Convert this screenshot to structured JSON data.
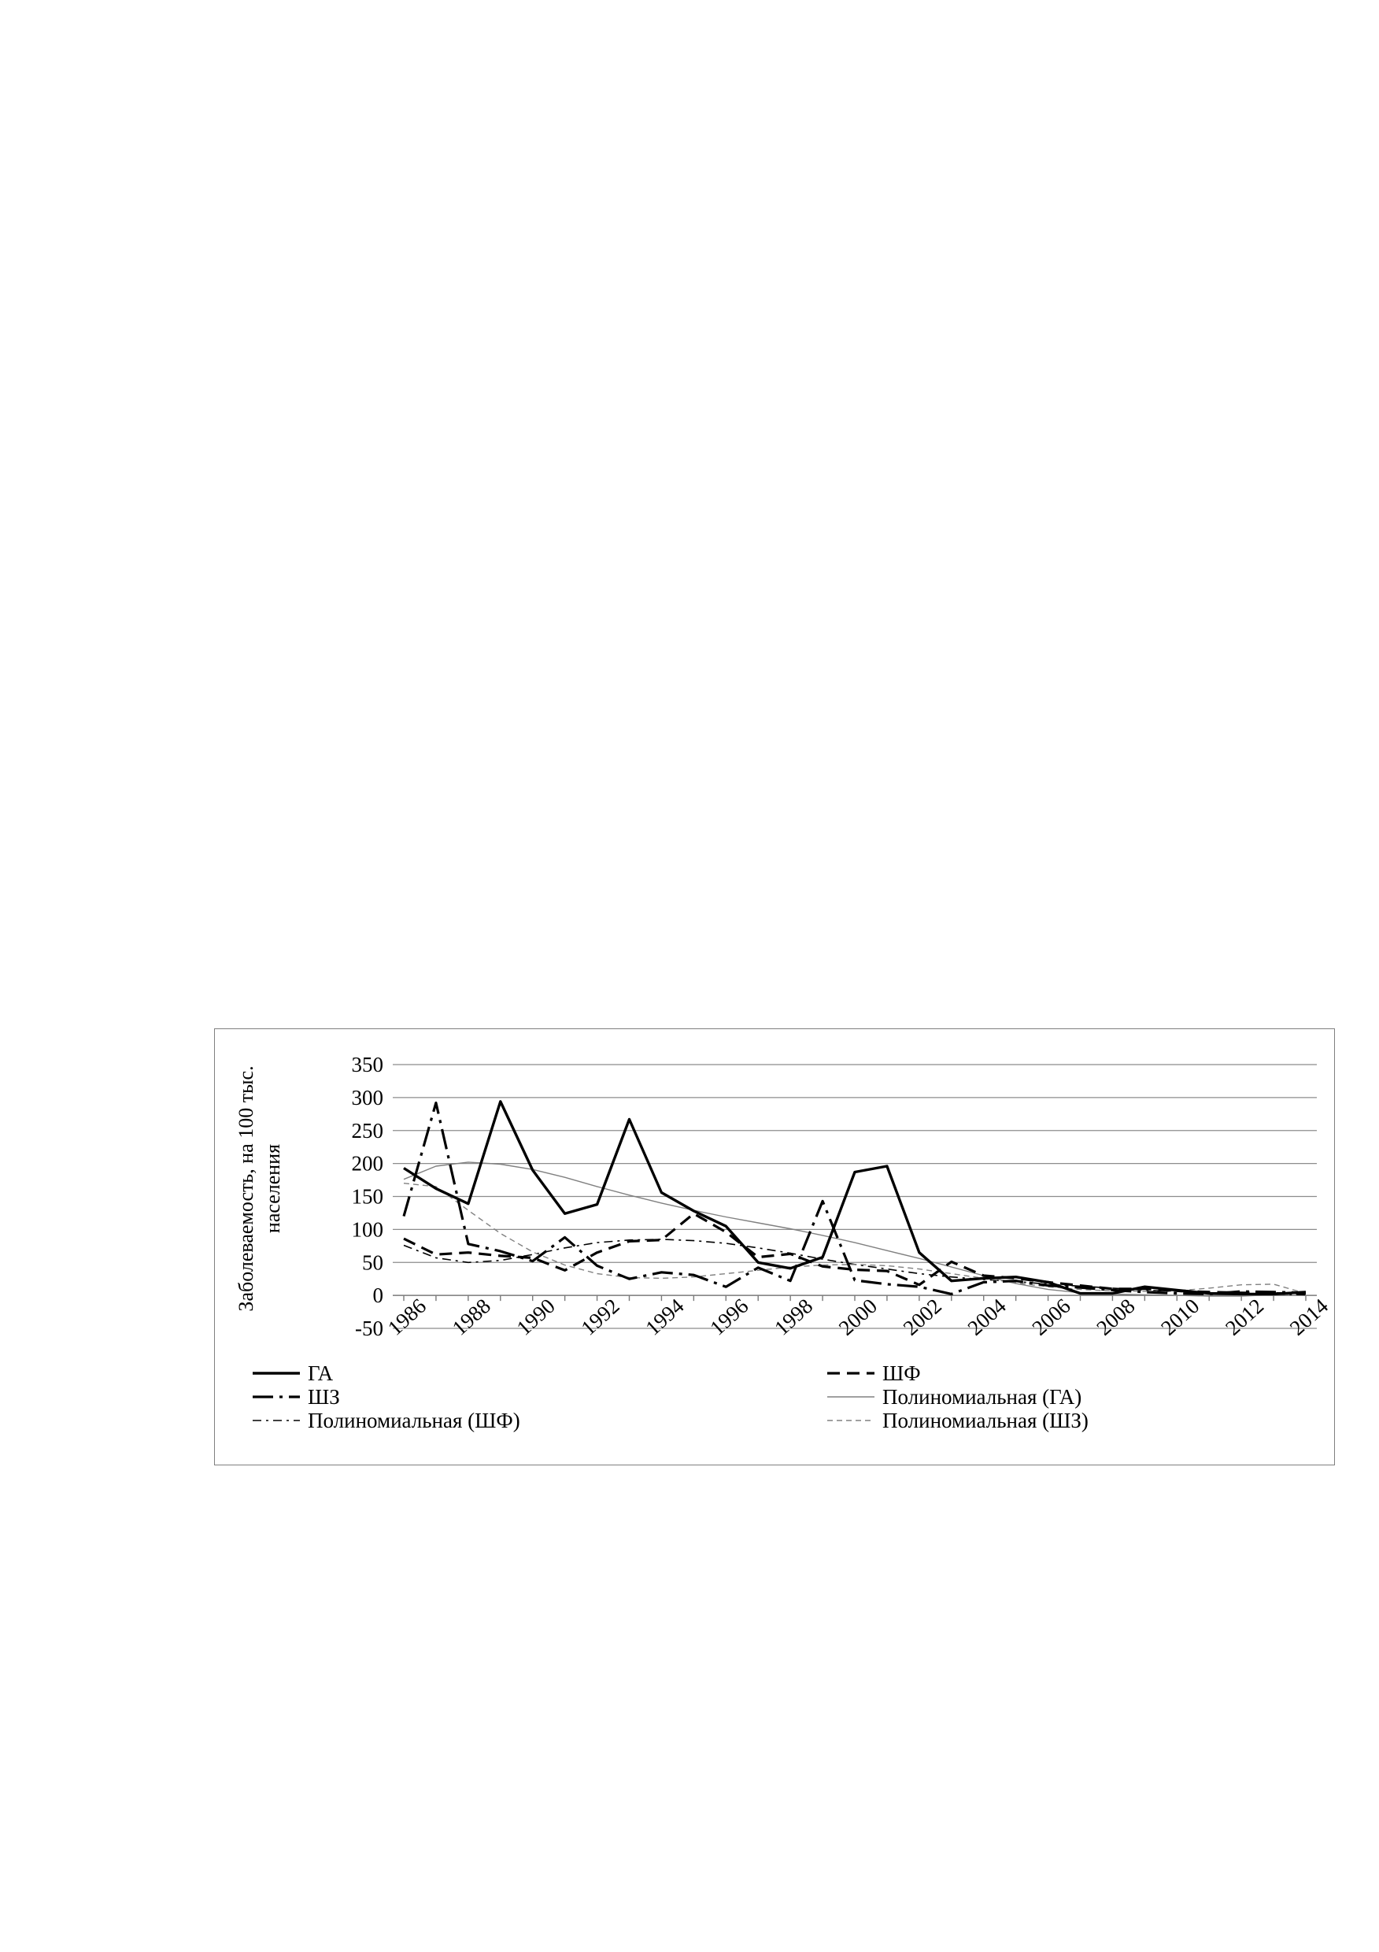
{
  "chart_data": {
    "type": "line",
    "title": "",
    "xlabel": "",
    "ylabel": "Заболеваемость, на 100 тыс. населения",
    "ylabel_lines": [
      "Заболеваемость, на 100 тыс.",
      "населения"
    ],
    "ylim": [
      -50,
      350
    ],
    "yticks": [
      -50,
      0,
      50,
      100,
      150,
      200,
      250,
      300,
      350
    ],
    "xlim": [
      1986,
      2014
    ],
    "xticks": [
      1986,
      1988,
      1990,
      1992,
      1994,
      1996,
      1998,
      2000,
      2002,
      2004,
      2006,
      2008,
      2010,
      2012,
      2014
    ],
    "grid": "horizontal",
    "legend_position": "bottom",
    "x": [
      1986,
      1987,
      1988,
      1989,
      1990,
      1991,
      1992,
      1993,
      1994,
      1995,
      1996,
      1997,
      1998,
      1999,
      2000,
      2001,
      2002,
      2003,
      2004,
      2005,
      2006,
      2007,
      2008,
      2009,
      2010,
      2011,
      2012,
      2013,
      2014
    ],
    "series": [
      {
        "name": "ГА",
        "style": "solid-thick",
        "color": "#000000",
        "values": [
          193,
          162,
          139,
          294,
          190,
          124,
          138,
          267,
          156,
          128,
          105,
          50,
          41,
          58,
          187,
          196,
          65,
          22,
          26,
          28,
          20,
          3,
          3,
          13,
          8,
          3,
          2,
          2,
          5
        ]
      },
      {
        "name": "ШФ",
        "style": "dashed-thick",
        "color": "#000000",
        "values": [
          86,
          62,
          65,
          60,
          57,
          38,
          65,
          82,
          84,
          124,
          96,
          58,
          63,
          44,
          39,
          37,
          16,
          51,
          30,
          26,
          20,
          15,
          10,
          10,
          7,
          5,
          4,
          3,
          3
        ]
      },
      {
        "name": "ШЗ",
        "style": "longdash-dot-thick",
        "color": "#000000",
        "values": [
          120,
          292,
          78,
          67,
          52,
          88,
          45,
          25,
          35,
          31,
          13,
          42,
          22,
          143,
          23,
          17,
          13,
          2,
          20,
          22,
          15,
          12,
          8,
          5,
          3,
          2,
          6,
          5,
          4
        ]
      },
      {
        "name": "Полиномиальная (ГА)",
        "style": "solid-thin",
        "color": "#808080",
        "values": [
          176,
          196,
          202,
          199,
          191,
          179,
          165,
          152,
          140,
          129,
          119,
          110,
          101,
          91,
          80,
          68,
          56,
          43,
          30,
          18,
          9,
          4,
          2,
          1,
          0,
          -1,
          -1,
          1,
          4
        ]
      },
      {
        "name": "Полиномиальная (ШФ)",
        "style": "dashdot-thin",
        "color": "#000000",
        "values": [
          76,
          57,
          50,
          53,
          62,
          72,
          80,
          84,
          85,
          83,
          79,
          72,
          64,
          55,
          47,
          40,
          33,
          28,
          24,
          21,
          17,
          14,
          11,
          8,
          6,
          4,
          3,
          2,
          1
        ]
      },
      {
        "name": "Полиномиальная (ШЗ)",
        "style": "dashed-thin",
        "color": "#808080",
        "values": [
          170,
          165,
          129,
          94,
          66,
          46,
          33,
          27,
          26,
          28,
          33,
          38,
          43,
          46,
          47,
          45,
          40,
          33,
          26,
          19,
          13,
          9,
          7,
          6,
          7,
          11,
          16,
          17,
          3
        ]
      }
    ]
  }
}
